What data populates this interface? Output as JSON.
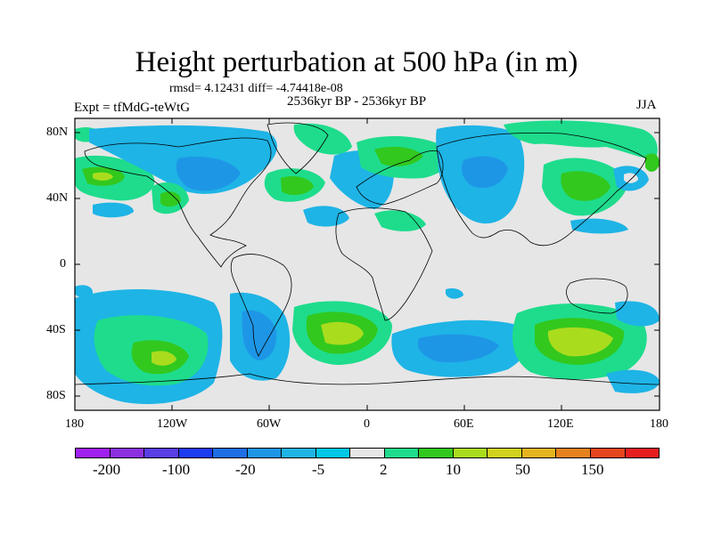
{
  "title": "Height perturbation at 500 hPa (in m)",
  "stats": "rmsd= 4.12431 diff= -4.74418e-08",
  "expt": "Expt = tfMdG-teWtG",
  "period": "2536kyr BP - 2536kyr BP",
  "season": "JJA",
  "lat_labels": [
    "80N",
    "40N",
    "0",
    "40S",
    "80S"
  ],
  "lon_labels": [
    "180",
    "120W",
    "60W",
    "0",
    "60E",
    "120E",
    "180"
  ],
  "colorbar": {
    "colors": [
      "#a020f0",
      "#8c30e0",
      "#5a3ee6",
      "#1e3cf0",
      "#1e6ee6",
      "#1e96e6",
      "#1eb4e6",
      "#00c8e6",
      "#e6e6e6",
      "#1edc8c",
      "#32c81e",
      "#aadc1e",
      "#d2d21e",
      "#e6b41e",
      "#e6821e",
      "#e6461e",
      "#e61e1e"
    ],
    "labels": [
      "-200",
      "-100",
      "-20",
      "-5",
      "2",
      "10",
      "50",
      "150"
    ]
  },
  "palette": {
    "background": "#e6e6e6",
    "negative_light": "#1eb4e6",
    "negative_mid": "#1e96e6",
    "positive_light": "#1edc8c",
    "positive_mid": "#32c81e",
    "positive_high": "#aadc1e"
  }
}
